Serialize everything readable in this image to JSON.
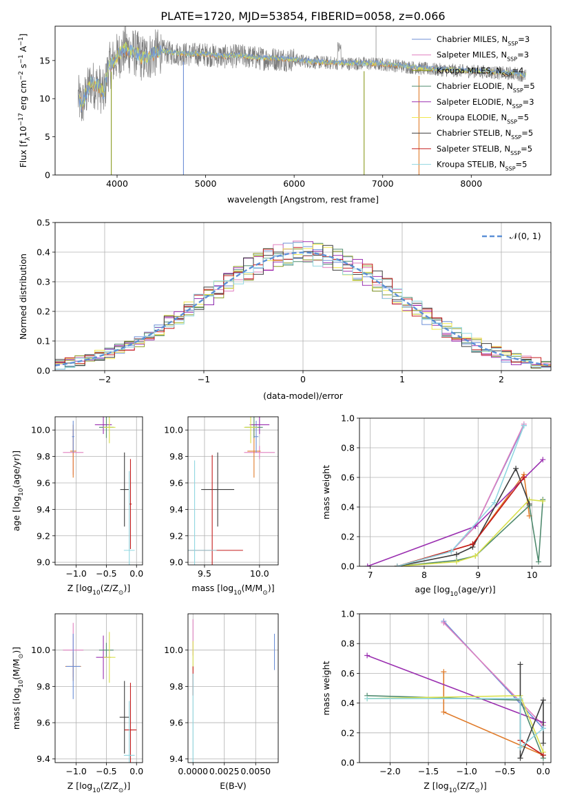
{
  "figure": {
    "title": "PLATE=1720, MJD=53854, FIBERID=0058, z=0.066"
  },
  "models": [
    {
      "label": "Chabrier MILES, N",
      "sub": "SSP",
      "suffix": "=3",
      "color": "#6b8ed6"
    },
    {
      "label": "Salpeter MILES, N",
      "sub": "SSP",
      "suffix": "=3",
      "color": "#e07fbf"
    },
    {
      "label": "Kroupa MILES, N",
      "sub": "SSP",
      "suffix": "=4",
      "color": "#8a9a1f"
    },
    {
      "label": "Chabrier ELODIE, N",
      "sub": "SSP",
      "suffix": "=5",
      "color": "#4f8a6e"
    },
    {
      "label": "Salpeter ELODIE, N",
      "sub": "SSP",
      "suffix": "=3",
      "color": "#9a2fb0"
    },
    {
      "label": "Kroupa ELODIE, N",
      "sub": "SSP",
      "suffix": "=5",
      "color": "#f0e84a"
    },
    {
      "label": "Chabrier STELIB, N",
      "sub": "SSP",
      "suffix": "=5",
      "color": "#3a3a3a"
    },
    {
      "label": "Salpeter STELIB, N",
      "sub": "SSP",
      "suffix": "=5",
      "color": "#c41a1a"
    },
    {
      "label": "Kroupa STELIB, N",
      "sub": "SSP",
      "suffix": "=5",
      "color": "#8fd6e0"
    }
  ],
  "chart_data": [
    {
      "id": "spectrum",
      "type": "line",
      "xlabel": "wavelength [Angstrom, rest frame]",
      "ylabel": "Flux [f",
      "ylabel_parts": [
        "Flux [f",
        "λ",
        "10",
        "−17",
        " erg cm",
        "−2",
        " s",
        "−1",
        " A",
        "−1",
        "]"
      ],
      "xlim": [
        3300,
        8900
      ],
      "ylim": [
        0,
        19.5
      ],
      "xticks": [
        4000,
        5000,
        6000,
        7000,
        8000
      ],
      "yticks": [
        0,
        5,
        10,
        15
      ],
      "grid": false,
      "legend": "upper-right",
      "continuum": {
        "x": [
          3550,
          3600,
          3700,
          3800,
          3850,
          3900,
          4000,
          4100,
          4200,
          4300,
          4400,
          4500,
          4600,
          4800,
          5000,
          5200,
          5400,
          5600,
          5800,
          6000,
          6200,
          6400,
          6600,
          6800,
          7000,
          7200,
          7400,
          7600,
          7800,
          8000,
          8200,
          8400,
          8500,
          8600
        ],
        "y": [
          10.5,
          9.0,
          12.0,
          11.5,
          10.5,
          14.0,
          15.5,
          16.5,
          16.0,
          15.2,
          15.8,
          16.2,
          16.0,
          15.8,
          15.8,
          15.5,
          15.6,
          15.3,
          15.2,
          15.1,
          14.8,
          14.7,
          14.6,
          14.6,
          14.5,
          14.3,
          14.0,
          13.8,
          13.7,
          13.6,
          13.5,
          13.3,
          13.3,
          13.0
        ]
      },
      "dips": [
        {
          "x": 3935,
          "y": 0.0,
          "color": "#8a9a1f"
        },
        {
          "x": 4750,
          "y": 0.0,
          "color": "#6b8ed6"
        },
        {
          "x": 6790,
          "y": 0.0,
          "color": "#8a9a1f"
        },
        {
          "x": 7410,
          "y": 0.0,
          "color": "#e07b2a"
        }
      ]
    },
    {
      "id": "residuals",
      "type": "histogram",
      "xlabel": "(data-model)/error",
      "ylabel": "Normed distribution",
      "xlim": [
        -2.5,
        2.5
      ],
      "ylim": [
        0,
        0.5
      ],
      "xticks": [
        -2,
        -1,
        0,
        1,
        2
      ],
      "yticks": [
        0.0,
        0.1,
        0.2,
        0.3,
        0.4,
        0.5
      ],
      "grid": true,
      "legend": "upper-right",
      "legend_label": "𝒩(0, 1)",
      "bin_width": 0.1
    },
    {
      "id": "age-vs-z",
      "type": "scatter",
      "xlabel": "Z [log10(Z/Z⊙)]",
      "ylabel": "age  [log10(age/yr)]",
      "xlim": [
        -1.35,
        0.1
      ],
      "ylim": [
        8.98,
        10.1
      ],
      "xticks": [
        -1.0,
        -0.5,
        0.0
      ],
      "yticks": [
        9.0,
        9.2,
        9.4,
        9.6,
        9.8,
        10.0
      ],
      "grid": true,
      "points": [
        {
          "x": -1.05,
          "y": 9.83,
          "xerr": 0.17,
          "yerr": 0.17,
          "color": "#e07fbf"
        },
        {
          "x": -1.05,
          "y": 9.84,
          "xerr": 0.05,
          "yerr": 0.2,
          "color": "#e07b2a"
        },
        {
          "x": -1.05,
          "y": 9.95,
          "xerr": 0.02,
          "yerr": 0.12,
          "color": "#6b8ed6"
        },
        {
          "x": -0.55,
          "y": 10.04,
          "xerr": 0.14,
          "yerr": 0.07,
          "color": "#9a2fb0"
        },
        {
          "x": -0.5,
          "y": 10.02,
          "xerr": 0.12,
          "yerr": 0.08,
          "color": "#4f8a6e"
        },
        {
          "x": -0.45,
          "y": 10.02,
          "xerr": 0.1,
          "yerr": 0.12,
          "color": "#d8e04a"
        },
        {
          "x": -0.2,
          "y": 9.55,
          "xerr": 0.07,
          "yerr": 0.28,
          "color": "#3a3a3a"
        },
        {
          "x": -0.1,
          "y": 9.44,
          "xerr": 0.02,
          "yerr": 0.34,
          "color": "#c41a1a"
        },
        {
          "x": -0.12,
          "y": 9.09,
          "xerr": 0.09,
          "yerr": 0.6,
          "color": "#8fd6e0"
        }
      ]
    },
    {
      "id": "age-vs-mass",
      "type": "scatter",
      "xlabel": "mass [log10(M/M⊙)]",
      "ylabel": "",
      "xlim": [
        9.35,
        10.17
      ],
      "ylim": [
        8.98,
        10.1
      ],
      "xticks": [
        9.5,
        10.0
      ],
      "yticks": [
        9.0,
        9.2,
        9.4,
        9.6,
        9.8,
        10.0
      ],
      "grid": true,
      "points": [
        {
          "x": 10.0,
          "y": 9.83,
          "xerr": 0.14,
          "yerr": 0.05,
          "color": "#e07fbf"
        },
        {
          "x": 9.95,
          "y": 9.84,
          "xerr": 0.06,
          "yerr": 0.2,
          "color": "#e07b2a"
        },
        {
          "x": 9.97,
          "y": 9.95,
          "xerr": 0.02,
          "yerr": 0.12,
          "color": "#6b8ed6"
        },
        {
          "x": 10.0,
          "y": 10.04,
          "xerr": 0.09,
          "yerr": 0.07,
          "color": "#9a2fb0"
        },
        {
          "x": 9.95,
          "y": 10.02,
          "xerr": 0.08,
          "yerr": 0.08,
          "color": "#4f8a6e"
        },
        {
          "x": 9.92,
          "y": 10.02,
          "xerr": 0.06,
          "yerr": 0.12,
          "color": "#d8e04a"
        },
        {
          "x": 9.62,
          "y": 9.55,
          "xerr": 0.15,
          "yerr": 0.28,
          "color": "#3a3a3a"
        },
        {
          "x": 9.57,
          "y": 9.09,
          "xerr": 0.28,
          "yerr": 0.72,
          "color": "#c41a1a"
        },
        {
          "x": 9.41,
          "y": 9.09,
          "xerr": 0.2,
          "yerr": 0.68,
          "color": "#8fd6e0"
        }
      ]
    },
    {
      "id": "weight-vs-age",
      "type": "line",
      "xlabel": "age  [log10(age/yr)]",
      "ylabel": "mass weight",
      "xlim": [
        6.8,
        10.35
      ],
      "ylim": [
        0,
        1
      ],
      "xticks": [
        7,
        8,
        9,
        10
      ],
      "yticks": [
        0.0,
        0.2,
        0.4,
        0.6,
        0.8,
        1.0
      ],
      "grid": true,
      "series": [
        {
          "color": "#6b8ed6",
          "x": [
            7.5,
            8.5,
            8.95,
            9.85
          ],
          "y": [
            0.0,
            0.1,
            0.27,
            0.95
          ]
        },
        {
          "color": "#e07fbf",
          "x": [
            7.5,
            8.5,
            8.95,
            9.85
          ],
          "y": [
            0.0,
            0.1,
            0.27,
            0.96
          ]
        },
        {
          "color": "#e07b2a",
          "x": [
            7.5,
            8.9,
            9.85,
            9.95
          ],
          "y": [
            0.0,
            0.15,
            0.62,
            0.34
          ]
        },
        {
          "color": "#9a2fb0",
          "x": [
            6.95,
            8.95,
            10.2
          ],
          "y": [
            0.0,
            0.27,
            0.72
          ]
        },
        {
          "color": "#4f8a6e",
          "x": [
            7.5,
            8.6,
            8.95,
            9.95,
            10.12,
            10.2
          ],
          "y": [
            0.0,
            0.04,
            0.07,
            0.41,
            0.03,
            0.45
          ]
        },
        {
          "color": "#d8e04a",
          "x": [
            7.5,
            8.6,
            8.95,
            9.95,
            10.2
          ],
          "y": [
            0.0,
            0.03,
            0.07,
            0.45,
            0.44
          ]
        },
        {
          "color": "#3a3a3a",
          "x": [
            7.5,
            8.6,
            8.9,
            9.7,
            9.95
          ],
          "y": [
            0.0,
            0.08,
            0.13,
            0.66,
            0.42
          ]
        },
        {
          "color": "#c41a1a",
          "x": [
            7.5,
            8.9,
            9.85
          ],
          "y": [
            0.0,
            0.15,
            0.6
          ]
        },
        {
          "color": "#8fd6e0",
          "x": [
            7.5,
            8.5,
            9.3,
            9.85
          ],
          "y": [
            0.0,
            0.1,
            0.43,
            0.95
          ]
        }
      ]
    },
    {
      "id": "mass-vs-z",
      "type": "scatter",
      "xlabel": "Z [log10(Z/Z⊙)]",
      "ylabel": "mass [log10(M/M⊙)]",
      "xlim": [
        -1.35,
        0.1
      ],
      "ylim": [
        9.38,
        10.2
      ],
      "xticks": [
        -1.0,
        -0.5,
        0.0
      ],
      "yticks": [
        9.4,
        9.6,
        9.8,
        10.0
      ],
      "grid": true,
      "points": [
        {
          "x": -1.05,
          "y": 10.0,
          "xerr": 0.17,
          "yerr": 0.15,
          "color": "#e07fbf"
        },
        {
          "x": -1.05,
          "y": 9.91,
          "xerr": 0.13,
          "yerr": 0.08,
          "color": "#e07b2a"
        },
        {
          "x": -1.05,
          "y": 9.91,
          "xerr": 0.12,
          "yerr": 0.18,
          "color": "#6b8ed6"
        },
        {
          "x": -0.55,
          "y": 9.96,
          "xerr": 0.12,
          "yerr": 0.12,
          "color": "#9a2fb0"
        },
        {
          "x": -0.5,
          "y": 10.0,
          "xerr": 0.12,
          "yerr": 0.04,
          "color": "#4f8a6e"
        },
        {
          "x": -0.45,
          "y": 9.96,
          "xerr": 0.1,
          "yerr": 0.14,
          "color": "#d8e04a"
        },
        {
          "x": -0.2,
          "y": 9.63,
          "xerr": 0.08,
          "yerr": 0.2,
          "color": "#3a3a3a"
        },
        {
          "x": -0.1,
          "y": 9.56,
          "xerr": 0.1,
          "yerr": 0.26,
          "color": "#c41a1a"
        },
        {
          "x": -0.12,
          "y": 9.42,
          "xerr": 0.09,
          "yerr": 0.3,
          "color": "#8fd6e0"
        }
      ]
    },
    {
      "id": "mass-vs-ebv",
      "type": "scatter",
      "xlabel": "E(B-V)",
      "ylabel": "",
      "xlim": [
        -0.0004,
        0.0068
      ],
      "ylim": [
        9.38,
        10.2
      ],
      "xticks": [
        0.0,
        0.0025,
        0.005
      ],
      "xticklabels": [
        "0.0000",
        "0.0025",
        "0.0050"
      ],
      "yticks": [
        9.4,
        9.6,
        9.8,
        10.0
      ],
      "grid": true,
      "points": [
        {
          "x": 0.0,
          "y": 10.07,
          "xerr": 0.0,
          "yerr": 0.1,
          "color": "#e07fbf"
        },
        {
          "x": 0.0,
          "y": 9.97,
          "xerr": 0.0,
          "yerr": 0.08,
          "color": "#d8e04a"
        },
        {
          "x": 0.0,
          "y": 9.83,
          "xerr": 0.0,
          "yerr": 0.08,
          "color": "#c41a1a"
        },
        {
          "x": 0.0,
          "y": 9.62,
          "xerr": 0.0,
          "yerr": 0.25,
          "color": "#8fd6e0"
        },
        {
          "x": 0.0065,
          "y": 9.99,
          "xerr": 0.0,
          "yerr": 0.1,
          "color": "#6b8ed6"
        }
      ]
    },
    {
      "id": "weight-vs-z",
      "type": "line",
      "xlabel": "Z [log10(Z/Z⊙)]",
      "ylabel": "mass weight",
      "xlim": [
        -2.4,
        0.1
      ],
      "ylim": [
        0,
        1
      ],
      "xticks": [
        -2.0,
        -1.5,
        -1.0,
        -0.5,
        0.0
      ],
      "yticks": [
        0.0,
        0.2,
        0.4,
        0.6,
        0.8,
        1.0
      ],
      "grid": true,
      "series": [
        {
          "color": "#6b8ed6",
          "x": [
            -1.3,
            0.0
          ],
          "y": [
            0.95,
            0.23
          ]
        },
        {
          "color": "#e07fbf",
          "x": [
            -1.3,
            0.0
          ],
          "y": [
            0.94,
            0.25
          ]
        },
        {
          "color": "#e07b2a",
          "x": [
            -1.3,
            -1.3,
            0.0
          ],
          "y": [
            0.61,
            0.34,
            0.05
          ]
        },
        {
          "color": "#9a2fb0",
          "x": [
            -2.3,
            0.0
          ],
          "y": [
            0.72,
            0.27
          ]
        },
        {
          "color": "#4f8a6e",
          "x": [
            -2.3,
            -0.3,
            0.0,
            0.0
          ],
          "y": [
            0.45,
            0.42,
            0.03,
            0.05
          ]
        },
        {
          "color": "#d8e04a",
          "x": [
            -2.3,
            -0.3,
            0.0
          ],
          "y": [
            0.43,
            0.45,
            0.07
          ]
        },
        {
          "color": "#3a3a3a",
          "x": [
            -0.3,
            -0.3,
            0.0,
            0.0
          ],
          "y": [
            0.66,
            0.03,
            0.42,
            0.13
          ]
        },
        {
          "color": "#c41a1a",
          "x": [
            -0.3,
            0.0
          ],
          "y": [
            0.15,
            0.05
          ]
        },
        {
          "color": "#8fd6e0",
          "x": [
            -2.3,
            -0.3,
            -0.3,
            0.0
          ],
          "y": [
            0.43,
            0.43,
            0.1,
            0.23
          ]
        }
      ]
    }
  ]
}
